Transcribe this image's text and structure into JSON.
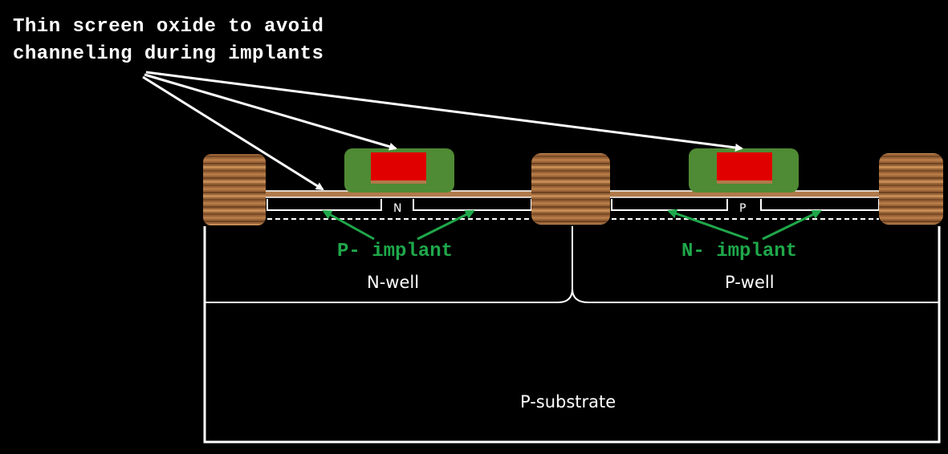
{
  "annotation": {
    "line1": "Thin screen oxide to avoid",
    "line2": "channeling during implants"
  },
  "implants": {
    "left": "P- implant",
    "right": "N- implant"
  },
  "wells": {
    "left": "N-well",
    "right": "P-well"
  },
  "substrate": "P-substrate",
  "channel_labels": {
    "left": "N",
    "right": "P"
  },
  "colors": {
    "background": "#000000",
    "outline": "#ffffff",
    "field_oxide": "#a0683a",
    "spacer": "#4f8a34",
    "gate": "#e00000",
    "screen_oxide": "#b07a4a",
    "implant_arrow": "#1fa84a"
  }
}
